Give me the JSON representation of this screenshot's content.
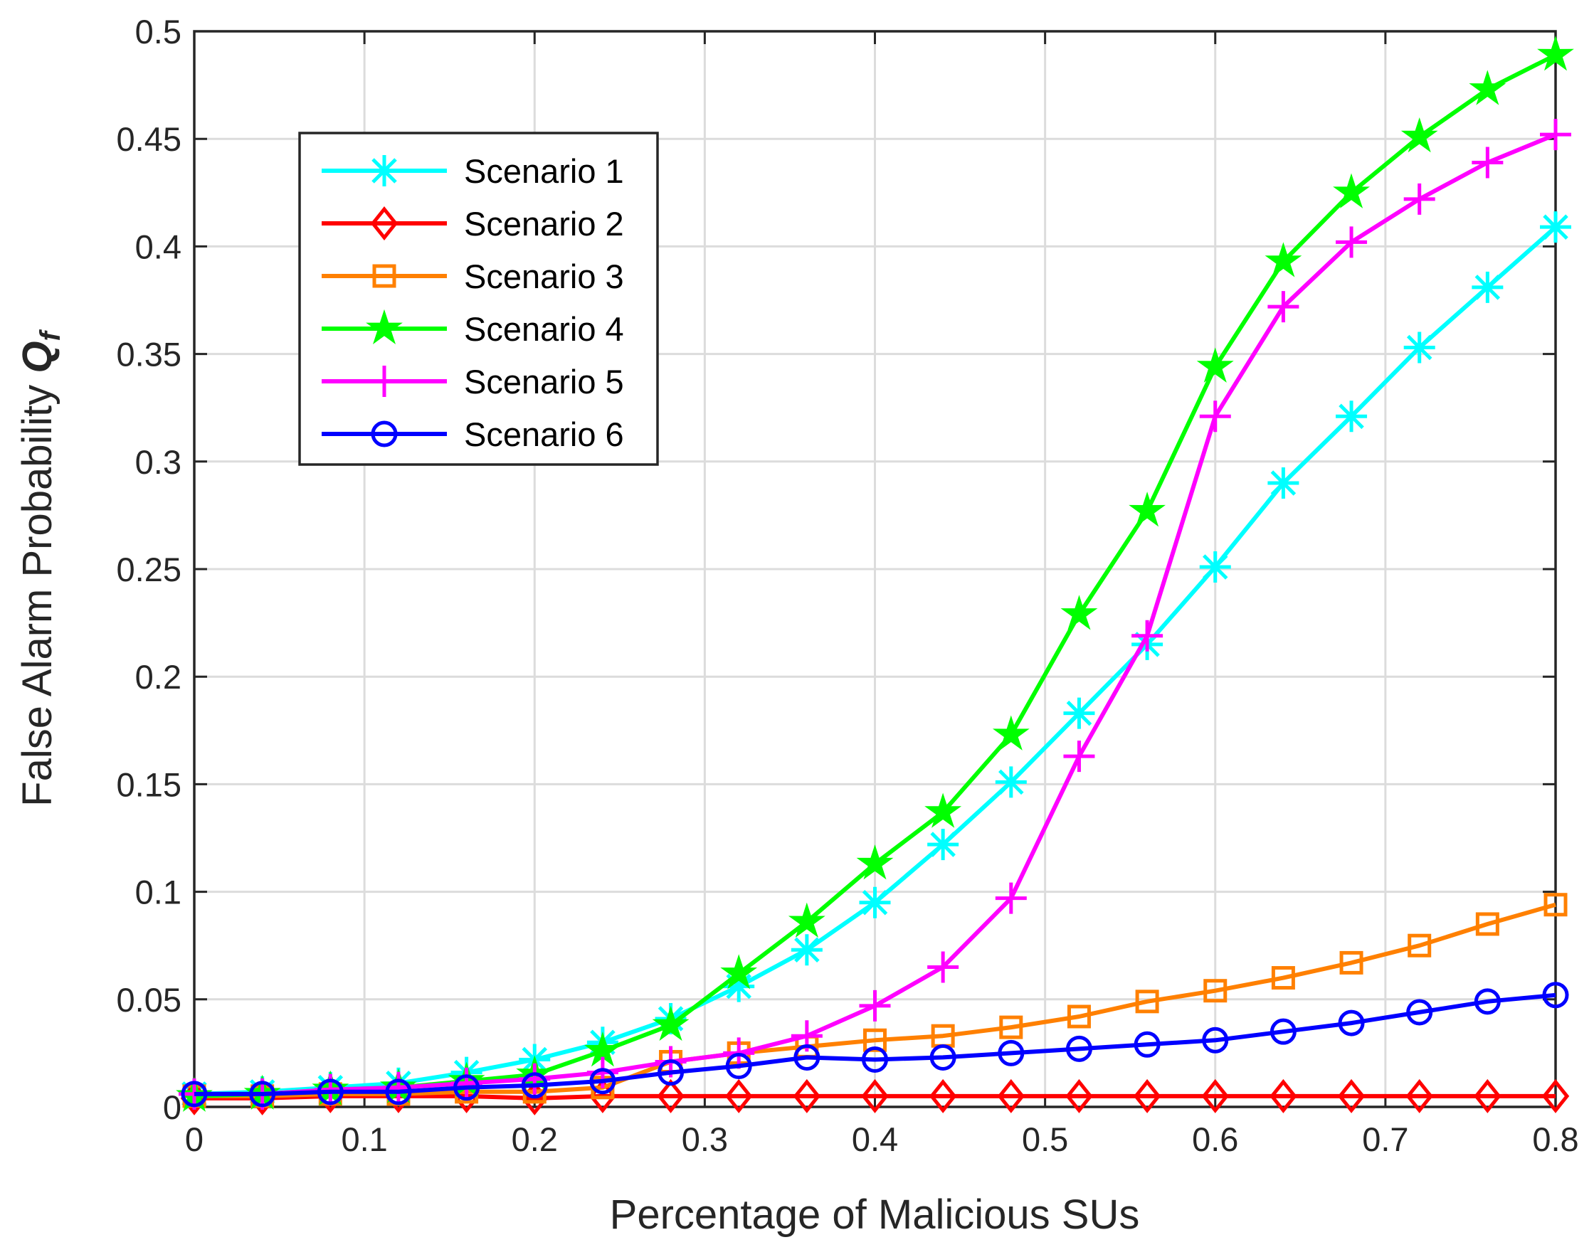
{
  "chart_data": {
    "type": "line",
    "xlabel": "Percentage of Malicious SUs",
    "ylabel": {
      "main": "False Alarm Probability ",
      "symbol": "Q",
      "subscript": "f"
    },
    "xlim": [
      0,
      0.8
    ],
    "ylim": [
      0,
      0.5
    ],
    "xticks": [
      0,
      0.1,
      0.2,
      0.3,
      0.4,
      0.5,
      0.6,
      0.7,
      0.8
    ],
    "xtick_labels": [
      "0",
      "0.1",
      "0.2",
      "0.3",
      "0.4",
      "0.5",
      "0.6",
      "0.7",
      "0.8"
    ],
    "yticks": [
      0,
      0.05,
      0.1,
      0.15,
      0.2,
      0.25,
      0.3,
      0.35,
      0.4,
      0.45,
      0.5
    ],
    "ytick_labels": [
      "0",
      "0.05",
      "0.1",
      "0.15",
      "0.2",
      "0.25",
      "0.3",
      "0.35",
      "0.4",
      "0.45",
      "0.5"
    ],
    "grid": true,
    "legend_position": "upper-left",
    "x": [
      0,
      0.04,
      0.08,
      0.12,
      0.16,
      0.2,
      0.24,
      0.28,
      0.32,
      0.36,
      0.4,
      0.44,
      0.48,
      0.52,
      0.56,
      0.6,
      0.64,
      0.68,
      0.72,
      0.76,
      0.8
    ],
    "series": [
      {
        "name": "Scenario 1",
        "color": "#00ffff",
        "marker": "asterisk",
        "values": [
          0.006,
          0.007,
          0.009,
          0.011,
          0.016,
          0.022,
          0.03,
          0.041,
          0.056,
          0.073,
          0.095,
          0.122,
          0.151,
          0.183,
          0.215,
          0.251,
          0.29,
          0.321,
          0.353,
          0.381,
          0.409
        ]
      },
      {
        "name": "Scenario 2",
        "color": "#ff0000",
        "marker": "diamond",
        "values": [
          0.004,
          0.004,
          0.005,
          0.005,
          0.005,
          0.004,
          0.005,
          0.005,
          0.005,
          0.005,
          0.005,
          0.005,
          0.005,
          0.005,
          0.005,
          0.005,
          0.005,
          0.005,
          0.005,
          0.005,
          0.005
        ]
      },
      {
        "name": "Scenario 3",
        "color": "#ff8000",
        "marker": "square",
        "values": [
          0.005,
          0.005,
          0.006,
          0.006,
          0.007,
          0.007,
          0.009,
          0.021,
          0.025,
          0.028,
          0.031,
          0.033,
          0.037,
          0.042,
          0.049,
          0.054,
          0.06,
          0.067,
          0.075,
          0.085,
          0.094
        ]
      },
      {
        "name": "Scenario 4",
        "color": "#00ff00",
        "marker": "pentagram",
        "values": [
          0.005,
          0.006,
          0.008,
          0.009,
          0.012,
          0.015,
          0.026,
          0.038,
          0.062,
          0.086,
          0.113,
          0.137,
          0.173,
          0.229,
          0.277,
          0.344,
          0.393,
          0.425,
          0.451,
          0.473,
          0.489
        ]
      },
      {
        "name": "Scenario 5",
        "color": "#ff00ff",
        "marker": "plus",
        "values": [
          0.006,
          0.006,
          0.008,
          0.009,
          0.011,
          0.013,
          0.016,
          0.021,
          0.025,
          0.033,
          0.047,
          0.065,
          0.097,
          0.163,
          0.219,
          0.321,
          0.372,
          0.402,
          0.422,
          0.439,
          0.452
        ]
      },
      {
        "name": "Scenario 6",
        "color": "#0000ff",
        "marker": "circle",
        "values": [
          0.006,
          0.006,
          0.007,
          0.007,
          0.009,
          0.01,
          0.012,
          0.016,
          0.019,
          0.023,
          0.022,
          0.023,
          0.025,
          0.027,
          0.029,
          0.031,
          0.035,
          0.039,
          0.044,
          0.049,
          0.052
        ]
      }
    ]
  }
}
